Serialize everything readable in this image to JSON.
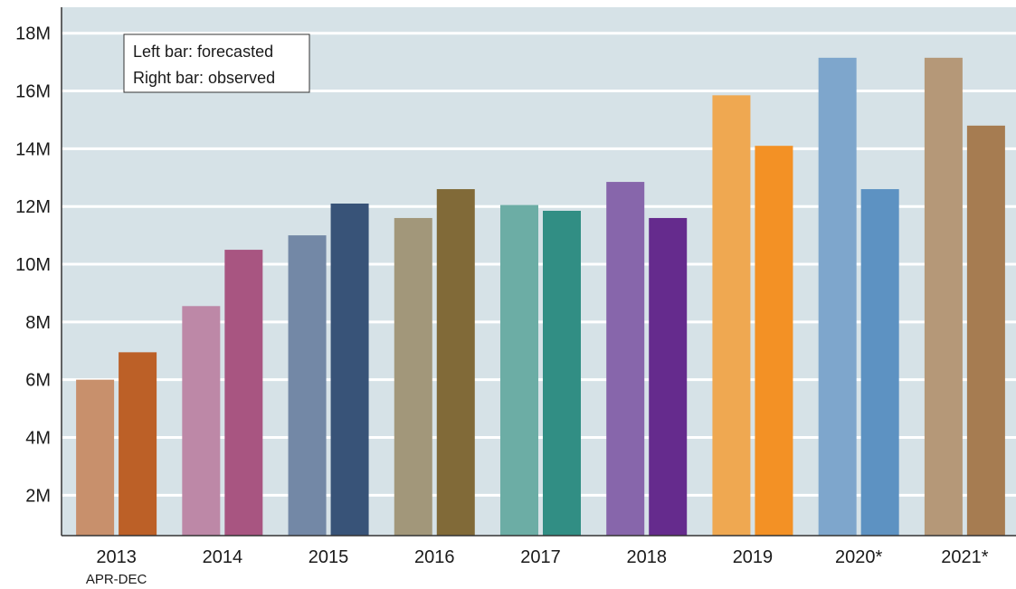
{
  "chart_data": {
    "type": "bar",
    "title": "",
    "xlabel": "",
    "ylabel": "",
    "ylim": [
      0.6,
      18.9
    ],
    "y_ticks": [
      2,
      4,
      6,
      8,
      10,
      12,
      14,
      16,
      18
    ],
    "y_tick_labels": [
      "2M",
      "4M",
      "6M",
      "8M",
      "10M",
      "12M",
      "14M",
      "16M",
      "18M"
    ],
    "grid": true,
    "categories": [
      {
        "label": "2013",
        "sublabel": "APR-DEC"
      },
      {
        "label": "2014",
        "sublabel": ""
      },
      {
        "label": "2015",
        "sublabel": ""
      },
      {
        "label": "2016",
        "sublabel": ""
      },
      {
        "label": "2017",
        "sublabel": ""
      },
      {
        "label": "2018",
        "sublabel": ""
      },
      {
        "label": "2019",
        "sublabel": ""
      },
      {
        "label": "2020*",
        "sublabel": ""
      },
      {
        "label": "2021*",
        "sublabel": ""
      }
    ],
    "series": [
      {
        "values": [
          6.0,
          8.55,
          11.0,
          11.6,
          12.05,
          12.85,
          15.85,
          17.15,
          17.15
        ],
        "colors": [
          "#c8906c",
          "#bd88a7",
          "#7388a6",
          "#a2977a",
          "#6cada5",
          "#8766ab",
          "#efa851",
          "#7ea6cc",
          "#b59878"
        ]
      },
      {
        "values": [
          6.95,
          10.5,
          12.1,
          12.6,
          11.85,
          11.6,
          14.1,
          12.6,
          14.8
        ],
        "colors": [
          "#bc6027",
          "#a85581",
          "#385378",
          "#816a38",
          "#318e84",
          "#652b8d",
          "#f39125",
          "#5d92c2",
          "#a67c51"
        ]
      }
    ],
    "legend": {
      "position": "top-left",
      "lines": [
        "Left bar: forecasted",
        "Right bar: observed"
      ]
    },
    "colors": {
      "plot_background": "#d6e2e7",
      "gridline": "#ffffff",
      "axis": "#333333"
    }
  }
}
